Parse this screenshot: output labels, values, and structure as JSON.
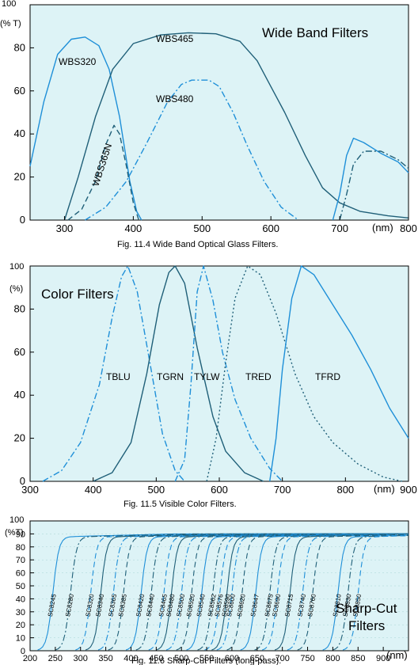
{
  "colors": {
    "background": "#ddf3f6",
    "line_light": "#1e8fd8",
    "line_dark": "#1f5f78"
  },
  "chart_data": [
    {
      "type": "line",
      "title": "Wide Band Filters",
      "caption": "Fig. 11.4  Wide Band Optical Glass Filters.",
      "ylabel": "(% T)",
      "xunit": "(nm)",
      "xlim": [
        250,
        800
      ],
      "ylim": [
        0,
        100
      ],
      "xticks": [
        "300",
        "400",
        "500",
        "600",
        "700",
        "800"
      ],
      "yticks": [
        "0",
        "20",
        "40",
        "60",
        "80",
        "100"
      ],
      "series": [
        {
          "name": "WBS320",
          "style": "solid",
          "color": "#1e8fd8",
          "points": [
            [
              250,
              25
            ],
            [
              270,
              55
            ],
            [
              290,
              77
            ],
            [
              310,
              84
            ],
            [
              330,
              85
            ],
            [
              350,
              81
            ],
            [
              365,
              70
            ],
            [
              380,
              48
            ],
            [
              395,
              18
            ],
            [
              405,
              4
            ],
            [
              412,
              0
            ]
          ]
        },
        {
          "name": "WBS365N",
          "style": "dashed",
          "color": "#1f5f78",
          "points": [
            [
              305,
              0
            ],
            [
              325,
              5
            ],
            [
              345,
              18
            ],
            [
              360,
              35
            ],
            [
              372,
              44
            ],
            [
              380,
              40
            ],
            [
              390,
              25
            ],
            [
              400,
              8
            ],
            [
              408,
              0
            ]
          ]
        },
        {
          "name": "WBS465",
          "style": "solid",
          "color": "#1f5f78",
          "points": [
            [
              300,
              0
            ],
            [
              320,
              20
            ],
            [
              345,
              48
            ],
            [
              370,
              70
            ],
            [
              400,
              82
            ],
            [
              440,
              86
            ],
            [
              480,
              87
            ],
            [
              520,
              86.5
            ],
            [
              555,
              83
            ],
            [
              580,
              74
            ],
            [
              600,
              62
            ],
            [
              620,
              50
            ],
            [
              650,
              30
            ],
            [
              675,
              15
            ],
            [
              700,
              8
            ],
            [
              730,
              4
            ],
            [
              770,
              2
            ],
            [
              800,
              1
            ]
          ]
        },
        {
          "name": "WBS480",
          "style": "dashdot",
          "color": "#1e8fd8",
          "points": [
            [
              330,
              0
            ],
            [
              360,
              6
            ],
            [
              390,
              18
            ],
            [
              420,
              36
            ],
            [
              450,
              55
            ],
            [
              470,
              63
            ],
            [
              485,
              65
            ],
            [
              510,
              65
            ],
            [
              525,
              62
            ],
            [
              545,
              50
            ],
            [
              565,
              35
            ],
            [
              590,
              18
            ],
            [
              615,
              6
            ],
            [
              640,
              0
            ]
          ]
        },
        {
          "name": "",
          "style": "solid",
          "color": "#1e8fd8",
          "points": [
            [
              690,
              0
            ],
            [
              700,
              12
            ],
            [
              710,
              30
            ],
            [
              720,
              38
            ],
            [
              735,
              36
            ],
            [
              760,
              31
            ],
            [
              785,
              27
            ],
            [
              800,
              22
            ]
          ]
        },
        {
          "name": "",
          "style": "dashdot",
          "color": "#1f5f78",
          "points": [
            [
              700,
              0
            ],
            [
              710,
              12
            ],
            [
              720,
              26
            ],
            [
              735,
              32
            ],
            [
              760,
              32
            ],
            [
              785,
              28
            ],
            [
              800,
              24
            ]
          ]
        }
      ]
    },
    {
      "type": "line",
      "title": "Color Filters",
      "caption": "Fig. 11.5  Visible Color Filters.",
      "ylabel": "(%)",
      "xunit": "(nm)",
      "xlim": [
        300,
        900
      ],
      "ylim": [
        0,
        100
      ],
      "xticks": [
        "300",
        "400",
        "500",
        "600",
        "700",
        "800",
        "900"
      ],
      "yticks": [
        "0",
        "20",
        "40",
        "60",
        "80",
        "100"
      ],
      "series": [
        {
          "name": "TBLU",
          "style": "dashdot",
          "color": "#1e8fd8",
          "points": [
            [
              320,
              0
            ],
            [
              350,
              5
            ],
            [
              380,
              18
            ],
            [
              410,
              45
            ],
            [
              430,
              76
            ],
            [
              445,
              95
            ],
            [
              455,
              100
            ],
            [
              470,
              88
            ],
            [
              490,
              55
            ],
            [
              510,
              22
            ],
            [
              530,
              5
            ],
            [
              545,
              0
            ]
          ]
        },
        {
          "name": "TGRN",
          "style": "solid",
          "color": "#1f5f78",
          "points": [
            [
              400,
              0
            ],
            [
              430,
              4
            ],
            [
              460,
              18
            ],
            [
              485,
              50
            ],
            [
              505,
              82
            ],
            [
              520,
              97
            ],
            [
              530,
              100
            ],
            [
              545,
              92
            ],
            [
              565,
              62
            ],
            [
              590,
              30
            ],
            [
              610,
              14
            ],
            [
              640,
              4
            ],
            [
              670,
              0
            ]
          ]
        },
        {
          "name": "TYLW",
          "style": "dashdot",
          "color": "#1e8fd8",
          "points": [
            [
              530,
              0
            ],
            [
              545,
              10
            ],
            [
              555,
              45
            ],
            [
              565,
              88
            ],
            [
              575,
              100
            ],
            [
              590,
              84
            ],
            [
              605,
              60
            ],
            [
              625,
              38
            ],
            [
              650,
              20
            ],
            [
              680,
              6
            ],
            [
              700,
              0
            ]
          ]
        },
        {
          "name": "TRED",
          "style": "dotted",
          "color": "#1f5f78",
          "points": [
            [
              580,
              0
            ],
            [
              595,
              20
            ],
            [
              610,
              55
            ],
            [
              625,
              85
            ],
            [
              645,
              100
            ],
            [
              665,
              96
            ],
            [
              690,
              78
            ],
            [
              720,
              50
            ],
            [
              750,
              30
            ],
            [
              780,
              18
            ],
            [
              820,
              8
            ],
            [
              860,
              2
            ],
            [
              890,
              0
            ]
          ]
        },
        {
          "name": "TFRD",
          "style": "solid",
          "color": "#1e8fd8",
          "points": [
            [
              680,
              0
            ],
            [
              690,
              20
            ],
            [
              700,
              52
            ],
            [
              715,
              85
            ],
            [
              730,
              100
            ],
            [
              750,
              96
            ],
            [
              780,
              82
            ],
            [
              810,
              68
            ],
            [
              840,
              52
            ],
            [
              870,
              34
            ],
            [
              900,
              20
            ]
          ]
        }
      ]
    },
    {
      "type": "line",
      "title": "Sharp-Cut Filters",
      "caption": "Fig. 11.6  Sharp-Cut Filters (long-pass).",
      "ylabel": "(%T)",
      "xunit": "(nm)",
      "xlim": [
        200,
        950
      ],
      "ylim": [
        0,
        100
      ],
      "xticks": [
        "200",
        "250",
        "300",
        "350",
        "400",
        "450",
        "500",
        "550",
        "600",
        "650",
        "700",
        "750",
        "800",
        "850",
        "900"
      ],
      "yticks": [
        "0",
        "10",
        "20",
        "30",
        "40",
        "50",
        "60",
        "70",
        "80",
        "90",
        "100"
      ],
      "series": [
        {
          "name": "SC8245",
          "cut": 245
        },
        {
          "name": "SC8280",
          "cut": 280
        },
        {
          "name": "SC8320",
          "cut": 320
        },
        {
          "name": "SC8340",
          "cut": 340
        },
        {
          "name": "SC8365",
          "cut": 365
        },
        {
          "name": "SC8385",
          "cut": 385
        },
        {
          "name": "SC8420",
          "cut": 420
        },
        {
          "name": "SC8440",
          "cut": 440
        },
        {
          "name": "SC8465",
          "cut": 465
        },
        {
          "name": "SC8480",
          "cut": 480
        },
        {
          "name": "SC8500",
          "cut": 500
        },
        {
          "name": "SC8520",
          "cut": 520
        },
        {
          "name": "SC8540",
          "cut": 540
        },
        {
          "name": "SC8562",
          "cut": 562
        },
        {
          "name": "SC8576",
          "cut": 576
        },
        {
          "name": "SC8590",
          "cut": 590
        },
        {
          "name": "SC8600",
          "cut": 600
        },
        {
          "name": "SC8620",
          "cut": 620
        },
        {
          "name": "SC8647",
          "cut": 647
        },
        {
          "name": "SC8675",
          "cut": 675
        },
        {
          "name": "SC8690",
          "cut": 690
        },
        {
          "name": "SC8715",
          "cut": 715
        },
        {
          "name": "SC8740",
          "cut": 740
        },
        {
          "name": "SC8760",
          "cut": 760
        },
        {
          "name": "SC8810",
          "cut": 810
        },
        {
          "name": "SC8830",
          "cut": 830
        },
        {
          "name": "SC8850",
          "cut": 850
        }
      ]
    }
  ]
}
